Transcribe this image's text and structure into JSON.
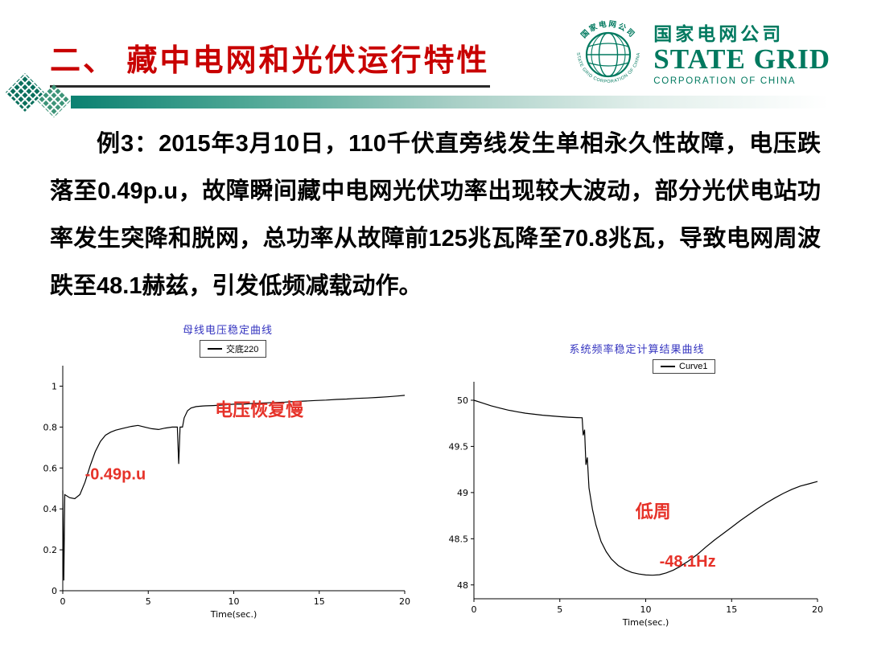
{
  "colors": {
    "title_red": "#c80000",
    "brand_green": "#00795f",
    "chart_title_blue": "#3535c0",
    "annotation_red": "#e63229"
  },
  "slide": {
    "title": "二、 藏中电网和光伏运行特性",
    "body": "例3：2015年3月10日，110千伏直旁线发生单相永久性故障，电压跌落至0.49p.u，故障瞬间藏中电网光伏功率出现较大波动，部分光伏电站功率发生突降和脱网，总功率从故障前125兆瓦降至70.8兆瓦，导致电网周波跌至48.1赫兹，引发低频减载动作。"
  },
  "logo": {
    "ring_text_top": "国家电网公司",
    "ring_text_bottom": "STATE GRID CORPORATION OF CHINA",
    "company_cn": "国家电网公司",
    "company_en": "STATE GRID",
    "company_en_sub": "CORPORATION OF CHINA"
  },
  "chart_data": [
    {
      "type": "line",
      "title": "母线电压稳定曲线",
      "legend_label": "交底220",
      "xlabel": "Time(sec.)",
      "xlim": [
        0,
        20
      ],
      "ylim": [
        0,
        1.1
      ],
      "xticks": [
        0,
        5,
        10,
        15,
        20
      ],
      "yticks": [
        0,
        0.2,
        0.4,
        0.6,
        0.8,
        1
      ],
      "line_color": "#000000",
      "series": [
        {
          "name": "交底220",
          "points": [
            [
              0,
              0.49
            ],
            [
              0.06,
              0.05
            ],
            [
              0.12,
              0.47
            ],
            [
              0.4,
              0.455
            ],
            [
              0.7,
              0.45
            ],
            [
              1.0,
              0.47
            ],
            [
              1.3,
              0.53
            ],
            [
              1.6,
              0.61
            ],
            [
              1.9,
              0.68
            ],
            [
              2.2,
              0.73
            ],
            [
              2.5,
              0.76
            ],
            [
              2.8,
              0.775
            ],
            [
              3.1,
              0.785
            ],
            [
              3.5,
              0.793
            ],
            [
              4.0,
              0.803
            ],
            [
              4.4,
              0.808
            ],
            [
              4.8,
              0.8
            ],
            [
              5.2,
              0.792
            ],
            [
              5.6,
              0.788
            ],
            [
              6.0,
              0.795
            ],
            [
              6.4,
              0.8
            ],
            [
              6.7,
              0.8
            ],
            [
              6.78,
              0.62
            ],
            [
              6.86,
              0.8
            ],
            [
              7.0,
              0.8
            ],
            [
              7.1,
              0.845
            ],
            [
              7.3,
              0.88
            ],
            [
              7.5,
              0.893
            ],
            [
              7.8,
              0.9
            ],
            [
              8.2,
              0.903
            ],
            [
              8.8,
              0.905
            ],
            [
              9.4,
              0.908
            ],
            [
              10.0,
              0.912
            ],
            [
              10.6,
              0.912
            ],
            [
              11.2,
              0.916
            ],
            [
              11.8,
              0.918
            ],
            [
              12.4,
              0.92
            ],
            [
              13.0,
              0.922
            ],
            [
              13.6,
              0.925
            ],
            [
              14.2,
              0.927
            ],
            [
              14.8,
              0.93
            ],
            [
              15.4,
              0.932
            ],
            [
              16.0,
              0.935
            ],
            [
              16.6,
              0.937
            ],
            [
              17.2,
              0.94
            ],
            [
              17.8,
              0.942
            ],
            [
              18.4,
              0.945
            ],
            [
              19.0,
              0.948
            ],
            [
              19.6,
              0.952
            ],
            [
              20,
              0.955
            ]
          ]
        }
      ],
      "annotations": [
        {
          "text": "-0.49p.u",
          "x": 1.3,
          "y": 0.545,
          "size": 20
        },
        {
          "text": "电压恢复慢",
          "x": 8.9,
          "y": 0.855,
          "size": 22
        }
      ]
    },
    {
      "type": "line",
      "title": "系统频率稳定计算结果曲线",
      "legend_label": "Curve1",
      "xlabel": "Time(sec.)",
      "xlim": [
        0,
        20
      ],
      "ylim": [
        47.85,
        50.2
      ],
      "xticks": [
        0,
        5,
        10,
        15,
        20
      ],
      "yticks": [
        48,
        48.5,
        49,
        49.5,
        50
      ],
      "line_color": "#000000",
      "series": [
        {
          "name": "Curve1",
          "points": [
            [
              0,
              50.0
            ],
            [
              0.5,
              49.97
            ],
            [
              1.0,
              49.94
            ],
            [
              1.5,
              49.915
            ],
            [
              2.0,
              49.893
            ],
            [
              2.5,
              49.875
            ],
            [
              3.0,
              49.86
            ],
            [
              3.5,
              49.848
            ],
            [
              4.0,
              49.838
            ],
            [
              4.5,
              49.83
            ],
            [
              5.0,
              49.822
            ],
            [
              5.5,
              49.816
            ],
            [
              6.0,
              49.812
            ],
            [
              6.3,
              49.81
            ],
            [
              6.36,
              49.62
            ],
            [
              6.44,
              49.68
            ],
            [
              6.52,
              49.3
            ],
            [
              6.6,
              49.38
            ],
            [
              6.7,
              49.05
            ],
            [
              6.9,
              48.82
            ],
            [
              7.1,
              48.65
            ],
            [
              7.4,
              48.47
            ],
            [
              7.7,
              48.36
            ],
            [
              8.0,
              48.28
            ],
            [
              8.4,
              48.21
            ],
            [
              8.8,
              48.165
            ],
            [
              9.2,
              48.135
            ],
            [
              9.6,
              48.118
            ],
            [
              10.0,
              48.108
            ],
            [
              10.4,
              48.105
            ],
            [
              10.8,
              48.11
            ],
            [
              11.2,
              48.13
            ],
            [
              11.6,
              48.16
            ],
            [
              12.0,
              48.2
            ],
            [
              12.5,
              48.26
            ],
            [
              13.0,
              48.33
            ],
            [
              13.5,
              48.41
            ],
            [
              14.0,
              48.485
            ],
            [
              14.5,
              48.555
            ],
            [
              15.0,
              48.625
            ],
            [
              15.5,
              48.695
            ],
            [
              16.0,
              48.76
            ],
            [
              16.5,
              48.825
            ],
            [
              17.0,
              48.885
            ],
            [
              17.5,
              48.94
            ],
            [
              18.0,
              48.99
            ],
            [
              18.5,
              49.035
            ],
            [
              19.0,
              49.07
            ],
            [
              19.5,
              49.095
            ],
            [
              20,
              49.12
            ]
          ]
        }
      ],
      "annotations": [
        {
          "text": "低周",
          "x": 9.4,
          "y": 48.73,
          "size": 22
        },
        {
          "text": "-48.1Hz",
          "x": 10.8,
          "y": 48.2,
          "size": 20
        }
      ]
    }
  ]
}
